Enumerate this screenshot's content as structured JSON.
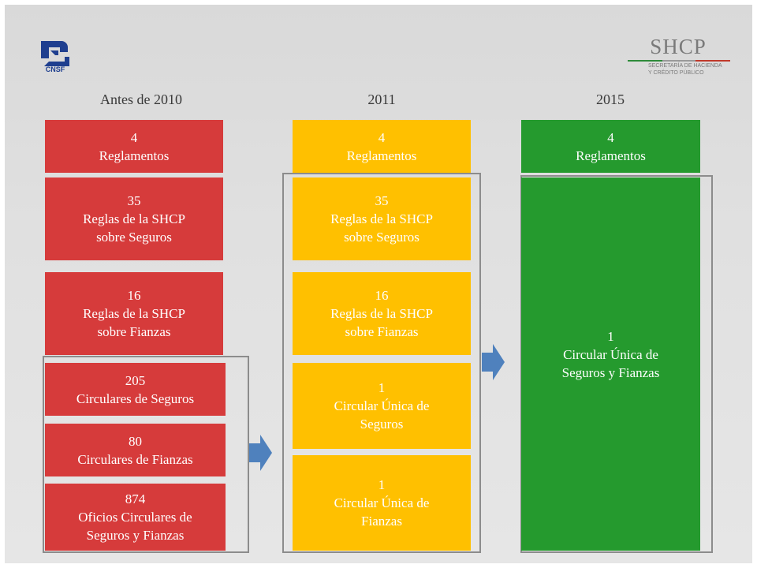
{
  "logos": {
    "left": {
      "icon": "cnsf-logo",
      "text": "CNSF"
    },
    "right": {
      "title": "SHCP",
      "subtitle_1": "SECRETARÍA DE HACIENDA",
      "subtitle_2": "Y CRÉDITO PÚBLICO"
    }
  },
  "columns": [
    {
      "header": "Antes de 2010",
      "color": "#d63b3b",
      "boxes": [
        {
          "number": "4",
          "text_lines": [
            "Reglamentos"
          ]
        },
        {
          "number": "35",
          "text_lines": [
            "Reglas de la SHCP",
            "sobre Seguros"
          ]
        },
        {
          "number": "16",
          "text_lines": [
            "Reglas de la SHCP",
            "sobre Fianzas"
          ]
        },
        {
          "number": "205",
          "text_lines": [
            "Circulares de Seguros"
          ]
        },
        {
          "number": "80",
          "text_lines": [
            "Circulares de Fianzas"
          ]
        },
        {
          "number": "874",
          "text_lines": [
            "Oficios Circulares de",
            "Seguros y Fianzas"
          ]
        }
      ]
    },
    {
      "header": "2011",
      "color": "#ffc000",
      "boxes": [
        {
          "number": "4",
          "text_lines": [
            "Reglamentos"
          ]
        },
        {
          "number": "35",
          "text_lines": [
            "Reglas de la SHCP",
            "sobre Seguros"
          ]
        },
        {
          "number": "16",
          "text_lines": [
            "Reglas de la SHCP",
            "sobre Fianzas"
          ]
        },
        {
          "number": "1",
          "text_lines": [
            "Circular Única de",
            "Seguros"
          ]
        },
        {
          "number": "1",
          "text_lines": [
            "Circular Única de",
            "Fianzas"
          ]
        }
      ]
    },
    {
      "header": "2015",
      "color": "#259a2e",
      "boxes": [
        {
          "number": "4",
          "text_lines": [
            "Reglamentos"
          ]
        },
        {
          "number": "1",
          "text_lines": [
            "Circular Única de",
            "Seguros y Fianzas"
          ]
        }
      ]
    }
  ],
  "arrow_color": "#4f81bd",
  "frame_color": "#8c8c8c"
}
